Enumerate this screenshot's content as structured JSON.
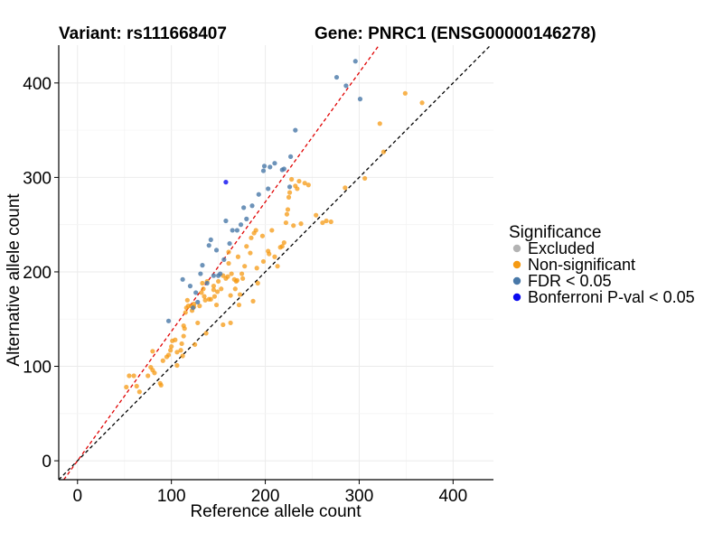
{
  "titles": {
    "variant": "Variant: rs111668407",
    "gene": "Gene: PNRC1 (ENSG00000146278)"
  },
  "chart_data": {
    "type": "scatter",
    "xlabel": "Reference allele count",
    "ylabel": "Alternative allele count",
    "xlim": [
      -20,
      443
    ],
    "ylim": [
      -20,
      440
    ],
    "xticks": [
      0,
      100,
      200,
      300,
      400
    ],
    "yticks": [
      0,
      100,
      200,
      300,
      400
    ],
    "grid": true,
    "reference_lines": [
      {
        "name": "identity",
        "slope": 1,
        "intercept": 0,
        "color": "#000000",
        "style": "dashed"
      },
      {
        "name": "fit",
        "slope": 1.37,
        "intercept": 0,
        "color": "#e00000",
        "style": "dashed"
      }
    ],
    "legend": {
      "title": "Significance",
      "position": "right",
      "entries": [
        {
          "label": "Excluded",
          "color": "#b3b3b3"
        },
        {
          "label": "Non-significant",
          "color": "#f59a13"
        },
        {
          "label": "FDR < 0.05",
          "color": "#4878a8"
        },
        {
          "label": "Bonferroni P-val < 0.05",
          "color": "#0a0af0"
        }
      ]
    },
    "series": [
      {
        "name": "Non-significant",
        "color": "#f59a13",
        "points": [
          [
            52,
            78
          ],
          [
            55,
            90
          ],
          [
            60,
            90
          ],
          [
            63,
            79
          ],
          [
            66,
            73
          ],
          [
            75,
            90
          ],
          [
            78,
            99
          ],
          [
            80,
            96
          ],
          [
            82,
            93
          ],
          [
            80,
            116
          ],
          [
            88,
            82
          ],
          [
            89,
            80
          ],
          [
            91,
            106
          ],
          [
            95,
            110
          ],
          [
            97,
            112
          ],
          [
            99,
            117
          ],
          [
            100,
            121
          ],
          [
            101,
            127
          ],
          [
            104,
            128
          ],
          [
            106,
            115
          ],
          [
            106,
            101
          ],
          [
            110,
            117
          ],
          [
            111,
            124
          ],
          [
            112,
            111
          ],
          [
            113,
            132
          ],
          [
            113,
            143
          ],
          [
            114,
            140
          ],
          [
            115,
            157
          ],
          [
            116,
            162
          ],
          [
            117,
            170
          ],
          [
            118,
            164
          ],
          [
            121,
            164
          ],
          [
            122,
            159
          ],
          [
            124,
            163
          ],
          [
            124,
            166
          ],
          [
            125,
            123
          ],
          [
            128,
            146
          ],
          [
            130,
            164
          ],
          [
            132,
            178
          ],
          [
            133,
            188
          ],
          [
            134,
            182
          ],
          [
            135,
            174
          ],
          [
            136,
            170
          ],
          [
            137,
            135
          ],
          [
            138,
            190
          ],
          [
            140,
            171
          ],
          [
            142,
            171
          ],
          [
            145,
            181
          ],
          [
            145,
            185
          ],
          [
            146,
            174
          ],
          [
            148,
            165
          ],
          [
            149,
            179
          ],
          [
            150,
            190
          ],
          [
            153,
            182
          ],
          [
            155,
            144
          ],
          [
            155,
            196
          ],
          [
            158,
            193
          ],
          [
            160,
            195
          ],
          [
            161,
            209
          ],
          [
            161,
            221
          ],
          [
            163,
            146
          ],
          [
            163,
            175
          ],
          [
            164,
            198
          ],
          [
            167,
            192
          ],
          [
            168,
            182
          ],
          [
            169,
            190
          ],
          [
            170,
            191
          ],
          [
            171,
            216
          ],
          [
            172,
            165
          ],
          [
            173,
            176
          ],
          [
            175,
            198
          ],
          [
            176,
            193
          ],
          [
            178,
            206
          ],
          [
            180,
            227
          ],
          [
            184,
            220
          ],
          [
            185,
            236
          ],
          [
            187,
            169
          ],
          [
            188,
            241
          ],
          [
            190,
            244
          ],
          [
            191,
            204
          ],
          [
            192,
            188
          ],
          [
            197,
            238
          ],
          [
            198,
            211
          ],
          [
            203,
            222
          ],
          [
            204,
            219
          ],
          [
            207,
            244
          ],
          [
            210,
            216
          ],
          [
            213,
            206
          ],
          [
            216,
            226
          ],
          [
            218,
            227
          ],
          [
            220,
            231
          ],
          [
            222,
            252
          ],
          [
            223,
            261
          ],
          [
            224,
            266
          ],
          [
            225,
            279
          ],
          [
            226,
            284
          ],
          [
            228,
            298
          ],
          [
            230,
            249
          ],
          [
            232,
            291
          ],
          [
            234,
            288
          ],
          [
            236,
            296
          ],
          [
            238,
            251
          ],
          [
            242,
            294
          ],
          [
            246,
            292
          ],
          [
            254,
            260
          ],
          [
            261,
            252
          ],
          [
            265,
            254
          ],
          [
            270,
            253
          ],
          [
            285,
            289
          ],
          [
            306,
            299
          ],
          [
            322,
            357
          ],
          [
            326,
            327
          ],
          [
            349,
            389
          ],
          [
            367,
            379
          ]
        ]
      },
      {
        "name": "FDR < 0.05",
        "color": "#4878a8",
        "points": [
          [
            97,
            148
          ],
          [
            112,
            192
          ],
          [
            120,
            185
          ],
          [
            123,
            162
          ],
          [
            126,
            178
          ],
          [
            128,
            168
          ],
          [
            131,
            198
          ],
          [
            133,
            207
          ],
          [
            138,
            188
          ],
          [
            140,
            228
          ],
          [
            142,
            234
          ],
          [
            145,
            196
          ],
          [
            148,
            223
          ],
          [
            150,
            196
          ],
          [
            152,
            198
          ],
          [
            156,
            213
          ],
          [
            158,
            254
          ],
          [
            162,
            230
          ],
          [
            165,
            244
          ],
          [
            170,
            244
          ],
          [
            174,
            250
          ],
          [
            177,
            268
          ],
          [
            180,
            256
          ],
          [
            186,
            270
          ],
          [
            193,
            282
          ],
          [
            198,
            307
          ],
          [
            199,
            312
          ],
          [
            203,
            288
          ],
          [
            205,
            311
          ],
          [
            210,
            315
          ],
          [
            218,
            308
          ],
          [
            220,
            309
          ],
          [
            226,
            290
          ],
          [
            227,
            322
          ],
          [
            232,
            350
          ],
          [
            276,
            406
          ],
          [
            286,
            397
          ],
          [
            296,
            423
          ],
          [
            301,
            383
          ]
        ]
      },
      {
        "name": "Bonferroni P-val < 0.05",
        "color": "#0a0af0",
        "points": [
          [
            158,
            295
          ]
        ]
      }
    ]
  }
}
